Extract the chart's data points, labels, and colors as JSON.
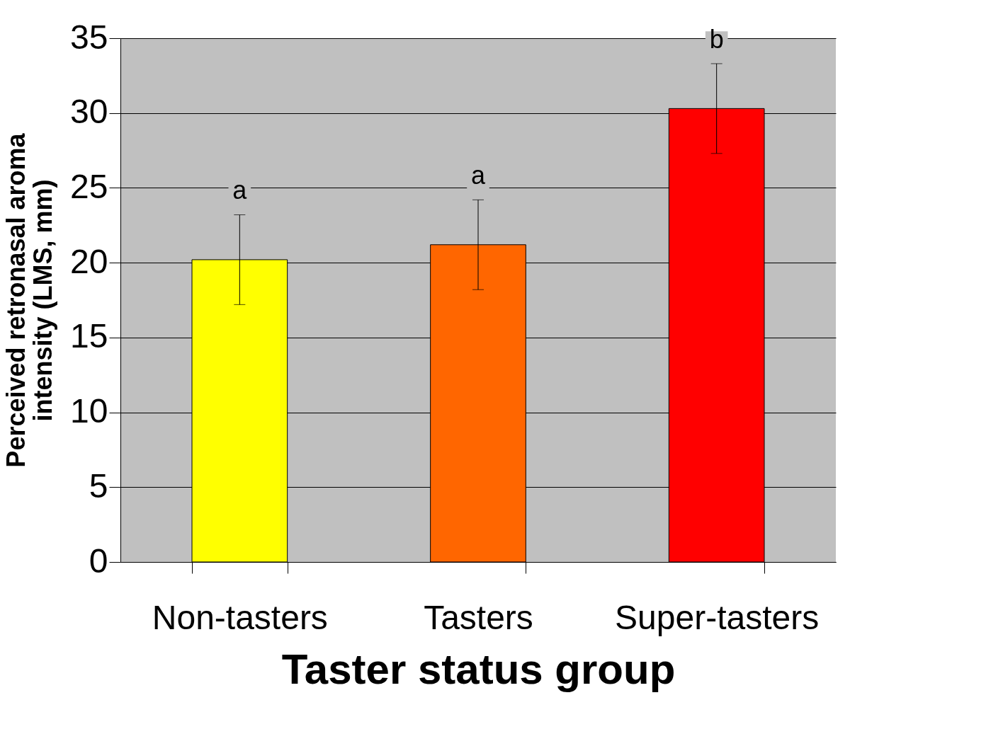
{
  "chart_data": {
    "type": "bar",
    "xlabel": "Taster status group",
    "ylabel": "Perceived retronasal aroma\nintensity (LMS, mm)",
    "categories": [
      "Non-tasters",
      "Tasters",
      "Super-tasters"
    ],
    "values": [
      20.2,
      21.2,
      30.3
    ],
    "errors": [
      3.0,
      3.0,
      3.0
    ],
    "colors": [
      "#ffff00",
      "#ff6600",
      "#ff0000"
    ],
    "ylim": [
      0,
      35
    ],
    "yticks": [
      0,
      5,
      10,
      15,
      20,
      25,
      30,
      35
    ],
    "grid": "y",
    "annotations": [
      "a",
      "a",
      "b"
    ]
  }
}
